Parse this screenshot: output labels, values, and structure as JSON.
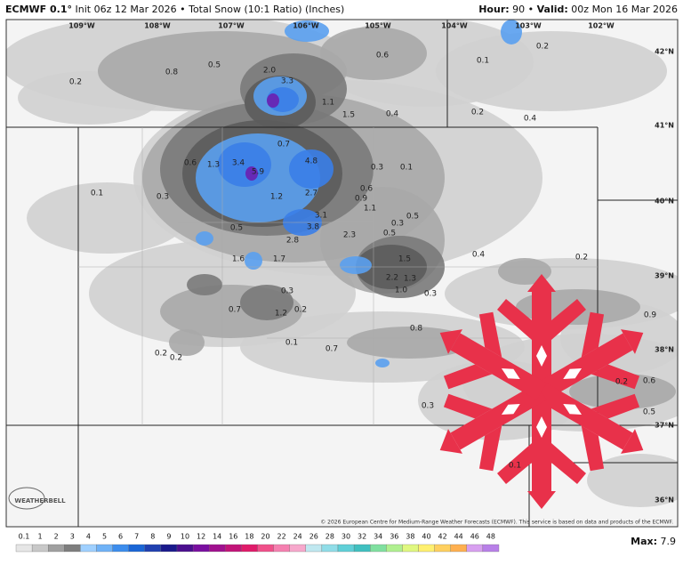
{
  "header": {
    "model": "ECMWF 0.1°",
    "init": "Init 06z 12 Mar 2026",
    "separator": "•",
    "product": "Total Snow (10:1 Ratio) (Inches)",
    "hour_label": "Hour:",
    "hour": "90",
    "valid_label": "Valid:",
    "valid": "00z Mon 16 Mar 2026"
  },
  "map": {
    "longitudes": [
      "109°W",
      "108°W",
      "107°W",
      "106°W",
      "105°W",
      "104°W",
      "103°W",
      "102°W"
    ],
    "latitudes": [
      "42°N",
      "41°N",
      "40°N",
      "39°N",
      "38°N",
      "37°N",
      "36°N"
    ],
    "snow_labels": [
      "0.2",
      "0.8",
      "0.5",
      "2.0",
      "3.3",
      "0.6",
      "0.1",
      "0.2",
      "1.1",
      "1.5",
      "0.4",
      "0.2",
      "0.4",
      "0.7",
      "4.8",
      "0.6",
      "1.3",
      "3.4",
      "5.9",
      "0.3",
      "0.1",
      "0.1",
      "0.3",
      "1.2",
      "2.7",
      "0.6",
      "0.9",
      "1.1",
      "3.1",
      "0.5",
      "0.3",
      "0.5",
      "3.8",
      "0.5",
      "2.8",
      "2.3",
      "0.4",
      "0.2",
      "1.6",
      "1.7",
      "1.5",
      "2.2",
      "1.3",
      "1.0",
      "0.3",
      "0.3",
      "0.7",
      "1.2",
      "0.2",
      "0.9",
      "0.8",
      "0.1",
      "0.7",
      "0.2",
      "0.2",
      "0.2",
      "0.6",
      "0.3",
      "0.5",
      "0.1"
    ],
    "copyright": "© 2026 European Centre for Medium-Range Weather Forecasts (ECMWF). This service is based on data and products of the ECMWF.",
    "logo": "WEATHERBELL"
  },
  "legend": {
    "ticks": [
      "0.1",
      "1",
      "2",
      "3",
      "4",
      "5",
      "6",
      "7",
      "8",
      "9",
      "10",
      "12",
      "14",
      "16",
      "18",
      "20",
      "22",
      "24",
      "26",
      "28",
      "30",
      "32",
      "34",
      "36",
      "38",
      "40",
      "42",
      "44",
      "46",
      "48"
    ],
    "max_label": "Max:",
    "max": "7.9"
  }
}
